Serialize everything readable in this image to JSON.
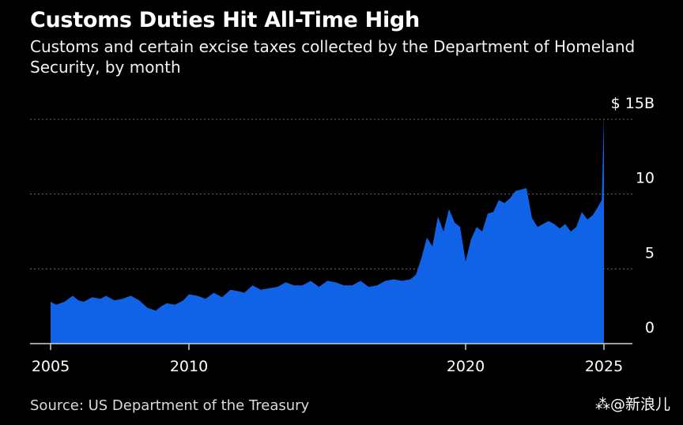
{
  "header": {
    "title": "Customs Duties Hit All-Time High",
    "subtitle": "Customs and certain excise taxes collected by the Department of Homeland Security, by month"
  },
  "footer": {
    "source": "Source: US Department of the Treasury",
    "watermark": "⁂@新浪儿"
  },
  "colors": {
    "background": "#000000",
    "area_fill": "#1062e6",
    "gridline": "#6b6b6b",
    "axis_line": "#cfcfcf",
    "text": "#ffffff"
  },
  "chart_data": {
    "type": "area",
    "title": "Customs Duties Hit All-Time High",
    "subtitle": "Customs and certain excise taxes collected by the Department of Homeland Security, by month",
    "xlabel": "",
    "ylabel": "",
    "xlim": [
      2004.7,
      2025.5
    ],
    "ylim": [
      0,
      15
    ],
    "grid": true,
    "legend": "none",
    "x_ticks": [
      {
        "value": 2005,
        "label": "2005"
      },
      {
        "value": 2010,
        "label": "2010"
      },
      {
        "value": 2020,
        "label": "2020"
      },
      {
        "value": 2025,
        "label": "2025"
      }
    ],
    "y_ticks": [
      {
        "value": 0,
        "label": "0"
      },
      {
        "value": 5,
        "label": "5"
      },
      {
        "value": 10,
        "label": "10"
      },
      {
        "value": 15,
        "label": "$ 15B"
      }
    ],
    "series": [
      {
        "x": [
          2005.0,
          2005.2,
          2005.5,
          2005.8,
          2006.0,
          2006.2,
          2006.5,
          2006.8,
          2007.0,
          2007.3,
          2007.6,
          2007.9,
          2008.2,
          2008.5,
          2008.8,
          2009.0,
          2009.2,
          2009.5,
          2009.8,
          2010.0,
          2010.3,
          2010.6,
          2010.9,
          2011.2,
          2011.5,
          2011.8,
          2012.0,
          2012.3,
          2012.6,
          2012.9,
          2013.2,
          2013.5,
          2013.8,
          2014.1,
          2014.4,
          2014.7,
          2015.0,
          2015.3,
          2015.6,
          2015.9,
          2016.2,
          2016.5,
          2016.8,
          2017.1,
          2017.4,
          2017.7,
          2018.0,
          2018.2,
          2018.4,
          2018.6,
          2018.8,
          2019.0,
          2019.2,
          2019.4,
          2019.6,
          2019.8,
          2020.0,
          2020.2,
          2020.4,
          2020.6,
          2020.8,
          2021.0,
          2021.2,
          2021.4,
          2021.6,
          2021.8,
          2022.0,
          2022.2,
          2022.4,
          2022.6,
          2022.8,
          2023.0,
          2023.2,
          2023.4,
          2023.6,
          2023.8,
          2024.0,
          2024.2,
          2024.4,
          2024.6,
          2024.8,
          2024.92,
          2025.0
        ],
        "values": [
          2.8,
          2.6,
          2.8,
          3.2,
          2.9,
          2.8,
          3.1,
          3.0,
          3.2,
          2.9,
          3.0,
          3.2,
          2.9,
          2.4,
          2.2,
          2.5,
          2.7,
          2.6,
          2.9,
          3.3,
          3.2,
          3.0,
          3.4,
          3.1,
          3.6,
          3.5,
          3.4,
          3.9,
          3.6,
          3.7,
          3.8,
          4.1,
          3.9,
          3.9,
          4.2,
          3.8,
          4.2,
          4.1,
          3.9,
          3.9,
          4.2,
          3.8,
          3.9,
          4.2,
          4.3,
          4.2,
          4.3,
          4.6,
          5.7,
          7.1,
          6.5,
          8.5,
          7.5,
          9.0,
          8.1,
          7.8,
          5.5,
          7.0,
          7.8,
          7.5,
          8.7,
          8.8,
          9.6,
          9.4,
          9.7,
          10.2,
          10.3,
          10.4,
          8.4,
          7.8,
          8.0,
          8.2,
          8.0,
          7.7,
          8.0,
          7.5,
          7.8,
          8.8,
          8.3,
          8.6,
          9.2,
          9.6,
          15.3
        ]
      }
    ]
  }
}
